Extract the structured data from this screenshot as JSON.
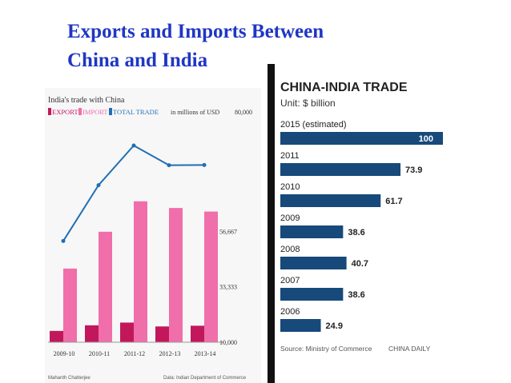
{
  "slide": {
    "title_line1": "Exports and Imports Between",
    "title_line2": "China and India"
  },
  "chart_data": [
    {
      "type": "bar",
      "title": "India's trade with China",
      "legend": [
        "EXPORT",
        "IMPORT",
        "TOTAL TRADE"
      ],
      "unit_label": "in millions of USD",
      "categories": [
        "2009-10",
        "2010-11",
        "2011-12",
        "2012-13",
        "2013-14"
      ],
      "series": [
        {
          "name": "EXPORT",
          "type": "bar",
          "values": [
            11600,
            19600,
            23500,
            18000,
            19000
          ]
        },
        {
          "name": "IMPORT",
          "type": "bar",
          "values": [
            41000,
            56500,
            69300,
            66500,
            65000
          ]
        },
        {
          "name": "TOTAL TRADE",
          "type": "line",
          "values": [
            52600,
            76100,
            92800,
            84500,
            84600
          ]
        }
      ],
      "y_ticks": [
        "10,000",
        "33,333",
        "56,667",
        "80,000"
      ],
      "ylim": [
        10000,
        80000
      ],
      "footer_left": "Mahanth Chatterjee",
      "footer_right": "Data: Indian Department of Commerce",
      "colors": {
        "export": "#c2185b",
        "import": "#f06eaa",
        "line": "#1f6fb4"
      }
    },
    {
      "type": "bar",
      "orientation": "horizontal",
      "title": "CHINA-INDIA TRADE",
      "subtitle": "Unit: $ billion",
      "categories": [
        "2015 (estimated)",
        "2011",
        "2010",
        "2009",
        "2008",
        "2007",
        "2006"
      ],
      "values": [
        100,
        73.9,
        61.7,
        38.6,
        40.7,
        38.6,
        24.9
      ],
      "value_labels": [
        "100",
        "73.9",
        "61.7",
        "38.6",
        "40.7",
        "38.6",
        "24.9"
      ],
      "source": "Source: Ministry of Commerce",
      "brand": "CHINA DAILY",
      "colors": {
        "bar": "#17497a"
      }
    }
  ]
}
